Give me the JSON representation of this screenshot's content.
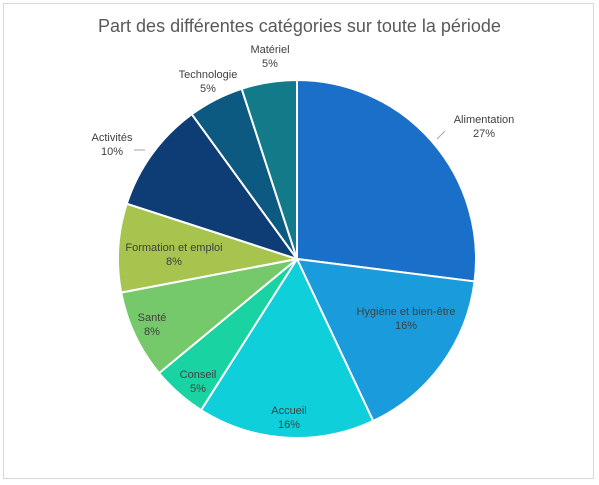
{
  "chart_data": {
    "type": "pie",
    "title": "Part des différentes catégories sur toute la période",
    "slices": [
      {
        "label": "Alimentation",
        "value": 27,
        "value_label": "27%",
        "color": "#1a6fc9"
      },
      {
        "label": "Hygiène et bien-être",
        "value": 16,
        "value_label": "16%",
        "color": "#1a9bdb"
      },
      {
        "label": "Accueil",
        "value": 16,
        "value_label": "16%",
        "color": "#0ecfda"
      },
      {
        "label": "Conseil",
        "value": 5,
        "value_label": "5%",
        "color": "#1ad3a3"
      },
      {
        "label": "Santé",
        "value": 8,
        "value_label": "8%",
        "color": "#76c96a"
      },
      {
        "label": "Formation et emploi",
        "value": 8,
        "value_label": "8%",
        "color": "#a6c44e"
      },
      {
        "label": "Activités",
        "value": 10,
        "value_label": "10%",
        "color": "#0d3d74"
      },
      {
        "label": "Technologie",
        "value": 5,
        "value_label": "5%",
        "color": "#0c5a82"
      },
      {
        "label": "Matériel",
        "value": 5,
        "value_label": "5%",
        "color": "#127a88"
      }
    ],
    "legend": "none"
  }
}
